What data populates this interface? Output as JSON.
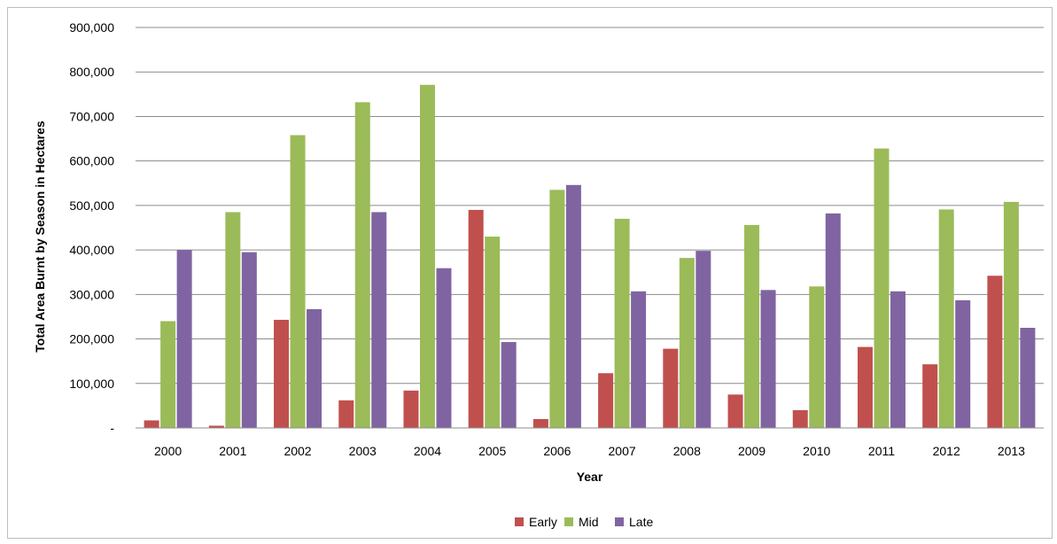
{
  "chart_data": {
    "type": "bar",
    "title": "",
    "xlabel": "Year",
    "ylabel": "Total Area Burnt by Season in Hectares",
    "categories": [
      "2000",
      "2001",
      "2002",
      "2003",
      "2004",
      "2005",
      "2006",
      "2007",
      "2008",
      "2009",
      "2010",
      "2011",
      "2012",
      "2013"
    ],
    "series": [
      {
        "name": "Early",
        "color": "#c0504d",
        "values": [
          17000,
          5000,
          243000,
          62000,
          84000,
          490000,
          20000,
          123000,
          178000,
          75000,
          40000,
          182000,
          143000,
          342000
        ]
      },
      {
        "name": "Mid",
        "color": "#9bbb59",
        "values": [
          240000,
          485000,
          658000,
          732000,
          771000,
          430000,
          535000,
          470000,
          382000,
          456000,
          318000,
          628000,
          491000,
          508000
        ]
      },
      {
        "name": "Late",
        "color": "#8064a2",
        "values": [
          400000,
          395000,
          267000,
          485000,
          359000,
          193000,
          546000,
          307000,
          398000,
          310000,
          482000,
          307000,
          287000,
          225000
        ]
      }
    ],
    "ylim": [
      0,
      900000
    ],
    "yticks": [
      0,
      100000,
      200000,
      300000,
      400000,
      500000,
      600000,
      700000,
      800000,
      900000
    ],
    "ytick_labels": [
      "-",
      "100,000",
      "200,000",
      "300,000",
      "400,000",
      "500,000",
      "600,000",
      "700,000",
      "800,000",
      "900,000"
    ],
    "grid": true,
    "legend_position": "bottom"
  }
}
